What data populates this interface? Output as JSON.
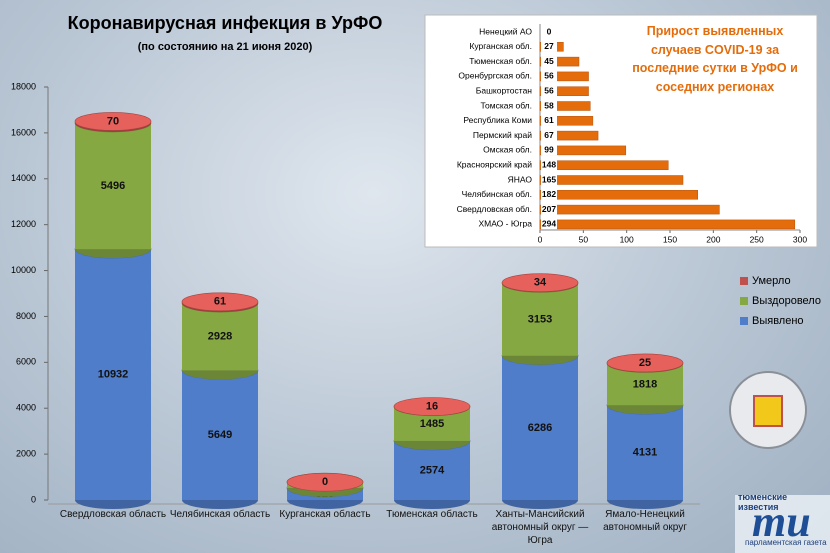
{
  "chart_data": [
    {
      "type": "bar",
      "stacked": true,
      "title": "Коронавирусная инфекция в УрФО",
      "subtitle": "(по состоянию на 21 июня 2020)",
      "categories": [
        "Свердловская область",
        "Челябинская область",
        "Курганская область",
        "Тюменская область",
        "Ханты-Мансийский автономный округ — Югра",
        "Ямало-Ненецкий автономный округ"
      ],
      "series": [
        {
          "name": "Выявлено",
          "color": "#4f7dc9",
          "values": [
            10932,
            5649,
            528,
            2574,
            6286,
            4131
          ]
        },
        {
          "name": "Выздоровело",
          "color": "#86a843",
          "values": [
            5496,
            2928,
            250,
            1485,
            3153,
            1818
          ]
        },
        {
          "name": "Умерло",
          "color": "#c0504d",
          "values": [
            70,
            61,
            0,
            16,
            34,
            25
          ]
        }
      ],
      "ylim": [
        0,
        18000
      ],
      "yticks": [
        0,
        2000,
        4000,
        6000,
        8000,
        10000,
        12000,
        14000,
        16000,
        18000
      ],
      "legend": "right"
    },
    {
      "type": "bar",
      "orientation": "horizontal",
      "title": "Прирост выявленных случаев COVID-19 за последние сутки в УрФО и соседних регионах",
      "categories": [
        "Ненецкий АО",
        "Курганская обл.",
        "Тюменская обл.",
        "Оренбургская обл.",
        "Башкортостан",
        "Томская обл.",
        "Республика Коми",
        "Пермский край",
        "Омская обл.",
        "Красноярский край",
        "ЯНАО",
        "Челябинская обл.",
        "Свердловская обл.",
        "ХМАО - Югра"
      ],
      "values": [
        0,
        27,
        45,
        56,
        56,
        58,
        61,
        67,
        99,
        148,
        165,
        182,
        207,
        294
      ],
      "color": "#e46c0a",
      "xlim": [
        0,
        300
      ],
      "xticks": [
        0,
        50,
        100,
        150,
        200,
        250,
        300
      ]
    }
  ],
  "logo": {
    "top": "тюменские известия",
    "mark": "ти",
    "bottom": "парламентская газета"
  }
}
